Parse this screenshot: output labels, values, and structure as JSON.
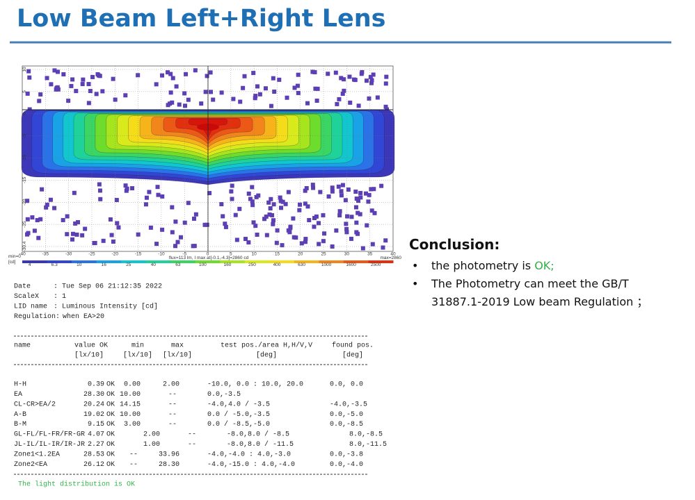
{
  "header": {
    "title": "Low Beam Left+Right Lens"
  },
  "plot": {
    "xticks": [
      "-40",
      "-35",
      "-30",
      "-25",
      "-20",
      "-15",
      "-10",
      "-5",
      "0",
      "5",
      "10",
      "15",
      "20",
      "25",
      "30",
      "35",
      "40"
    ],
    "yticks": [
      "10",
      "5",
      "0",
      "-5",
      "-10",
      "-15",
      "-20",
      "-25",
      "-30.4"
    ],
    "min_label": "min=0",
    "unit_label": "[cd]",
    "flux_label": "flux=113 lm, I max at[-0.1,-4.3]=2860 cd",
    "max_label": "max=2860",
    "colorbar": [
      "4",
      "6.3",
      "10",
      "16",
      "25",
      "40",
      "63",
      "100",
      "160",
      "250",
      "400",
      "630",
      "1000",
      "1600",
      "2500"
    ]
  },
  "info": [
    {
      "key": "Date",
      "value": ": Tue Sep 06 21:12:35 2022"
    },
    {
      "key": "ScaleX",
      "value": ": 1"
    },
    {
      "key": "LID name",
      "value": ": Luminous Intensity [cd]"
    },
    {
      "key": "Regulation:",
      "value": "when EA>20"
    }
  ],
  "table": {
    "header": {
      "name": "name",
      "value": [
        "value OK",
        "[lx/10]"
      ],
      "min": [
        "min",
        "[lx/10]"
      ],
      "max": [
        "max",
        "[lx/10]"
      ],
      "test": [
        "test pos./area H,H/V,V",
        "[deg]"
      ],
      "found": [
        "found pos.",
        "[deg]"
      ]
    },
    "rows": [
      {
        "name": "H-H",
        "value": "0.39",
        "status": "OK",
        "min": "0.00",
        "max": "2.00",
        "test": "-10.0, 0.0 :  10.0, 20.0",
        "found": "0.0, 0.0"
      },
      {
        "name": "EA",
        "value": "28.30",
        "status": "OK",
        "min": "10.00",
        "max": "--",
        "test": "0.0,-3.5"
      },
      {
        "name": "CL-CR>EA/2",
        "value": "20.24",
        "status": "OK",
        "min": "14.15",
        "max": "--",
        "test": "-4.0,4.0  / -3.5",
        "found": "-4.0,-3.5"
      },
      {
        "name": "A-B",
        "value": "19.02",
        "status": "OK",
        "min": "10.00",
        "max": "--",
        "test": "0.0       / -5.0,-3.5",
        "found": "0.0,-5.0"
      },
      {
        "name": "B-M",
        "value": "9.15",
        "status": "OK",
        "min": "3.00",
        "max": "--",
        "test": "0.0       / -8.5,-5.0",
        "found": "0.0,-8.5"
      },
      {
        "name": "GL-FL/FL-FR/FR-GR",
        "value": "4.07",
        "status": "OK",
        "min": "2.00",
        "max": "--",
        "test": "-8.0,8.0  / -8.5",
        "found": "8.0,-8.5"
      },
      {
        "name": "JL-IL/IL-IR/IR-JR",
        "value": "2.27",
        "status": "OK",
        "min": "1.00",
        "max": "--",
        "test": "-8.0,8.0  / -11.5",
        "found": "8.0,-11.5"
      },
      {
        "name": "Zone1<1.2EA",
        "value": "28.53",
        "status": "OK",
        "min": "--",
        "max": "33.96",
        "test": "-4.0,-4.0 :  4.0,-3.0",
        "found": "0.0,-3.8"
      },
      {
        "name": "Zone2<EA",
        "value": "26.12",
        "status": "OK",
        "min": "--",
        "max": "28.30",
        "test": "-4.0,-15.0 :  4.0,-4.0",
        "found": "0.0,-4.0"
      }
    ],
    "footer": "The light distribution is OK"
  },
  "conclusion": {
    "title": "Conclusion:",
    "bullets": [
      {
        "text": "the photometry is",
        "status": "OK;"
      },
      {
        "text": "The Photometry can meet the GB/T 31887.1-2019 Low beam Regulation ；"
      }
    ]
  }
}
